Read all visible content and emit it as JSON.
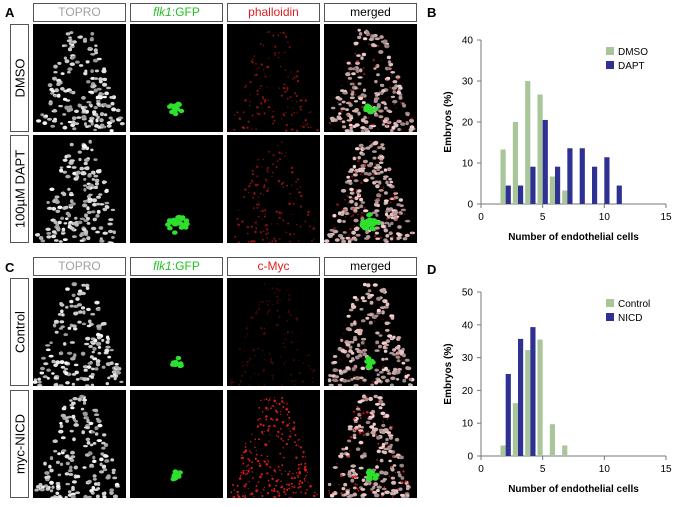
{
  "panels": {
    "A": {
      "letter": "A",
      "columns": [
        "TOPRO",
        "GFP",
        "phalloidin",
        "merged"
      ],
      "flk_prefix": "flk1",
      "flk_suffix": ":GFP",
      "rows": [
        "DMSO",
        "100µM DAPT"
      ]
    },
    "B": {
      "letter": "B"
    },
    "C": {
      "letter": "C",
      "columns": [
        "TOPRO",
        "GFP",
        "c-Myc",
        "merged"
      ],
      "flk_prefix": "flk1",
      "flk_suffix": ":GFP",
      "rows": [
        "Control",
        "myc-NICD"
      ]
    },
    "D": {
      "letter": "D"
    }
  },
  "colors": {
    "series_green": "#a8c69a",
    "series_blue": "#2e3192",
    "header_grey": "#a0a0a0",
    "header_green": "#22c022",
    "header_red": "#e02020"
  },
  "chart_data": [
    {
      "type": "bar",
      "panel": "B",
      "xlabel": "Number of endothelial cells",
      "ylabel": "Embryos (%)",
      "xlim": [
        0,
        15
      ],
      "ylim": [
        0,
        40
      ],
      "xticks": [
        0,
        5,
        10,
        15
      ],
      "yticks": [
        0,
        10,
        20,
        30,
        40
      ],
      "legend_position": "top-right",
      "series": [
        {
          "name": "DMSO",
          "color": "#a8c69a",
          "x": [
            2,
            3,
            4,
            5,
            6,
            7
          ],
          "values": [
            13.3,
            20,
            30,
            26.7,
            6.7,
            3.3
          ]
        },
        {
          "name": "DAPT",
          "color": "#2e3192",
          "x": [
            2,
            3,
            4,
            5,
            6,
            7,
            8,
            9,
            10,
            11
          ],
          "values": [
            4.5,
            4.5,
            9.1,
            20.5,
            9.1,
            13.6,
            13.6,
            9.1,
            11.4,
            4.5
          ]
        }
      ]
    },
    {
      "type": "bar",
      "panel": "D",
      "xlabel": "Number of endothelial cells",
      "ylabel": "Embryos (%)",
      "xlim": [
        0,
        15
      ],
      "ylim": [
        0,
        50
      ],
      "xticks": [
        0,
        5,
        10,
        15
      ],
      "yticks": [
        0,
        10,
        20,
        30,
        40,
        50
      ],
      "legend_position": "top-right",
      "series": [
        {
          "name": "Control",
          "color": "#a8c69a",
          "x": [
            2,
            3,
            4,
            5,
            6,
            7
          ],
          "values": [
            3.2,
            16.1,
            32.3,
            35.5,
            9.7,
            3.2
          ]
        },
        {
          "name": "NICD",
          "color": "#2e3192",
          "x": [
            2,
            3,
            4
          ],
          "values": [
            25,
            35.7,
            39.3
          ]
        }
      ]
    }
  ]
}
